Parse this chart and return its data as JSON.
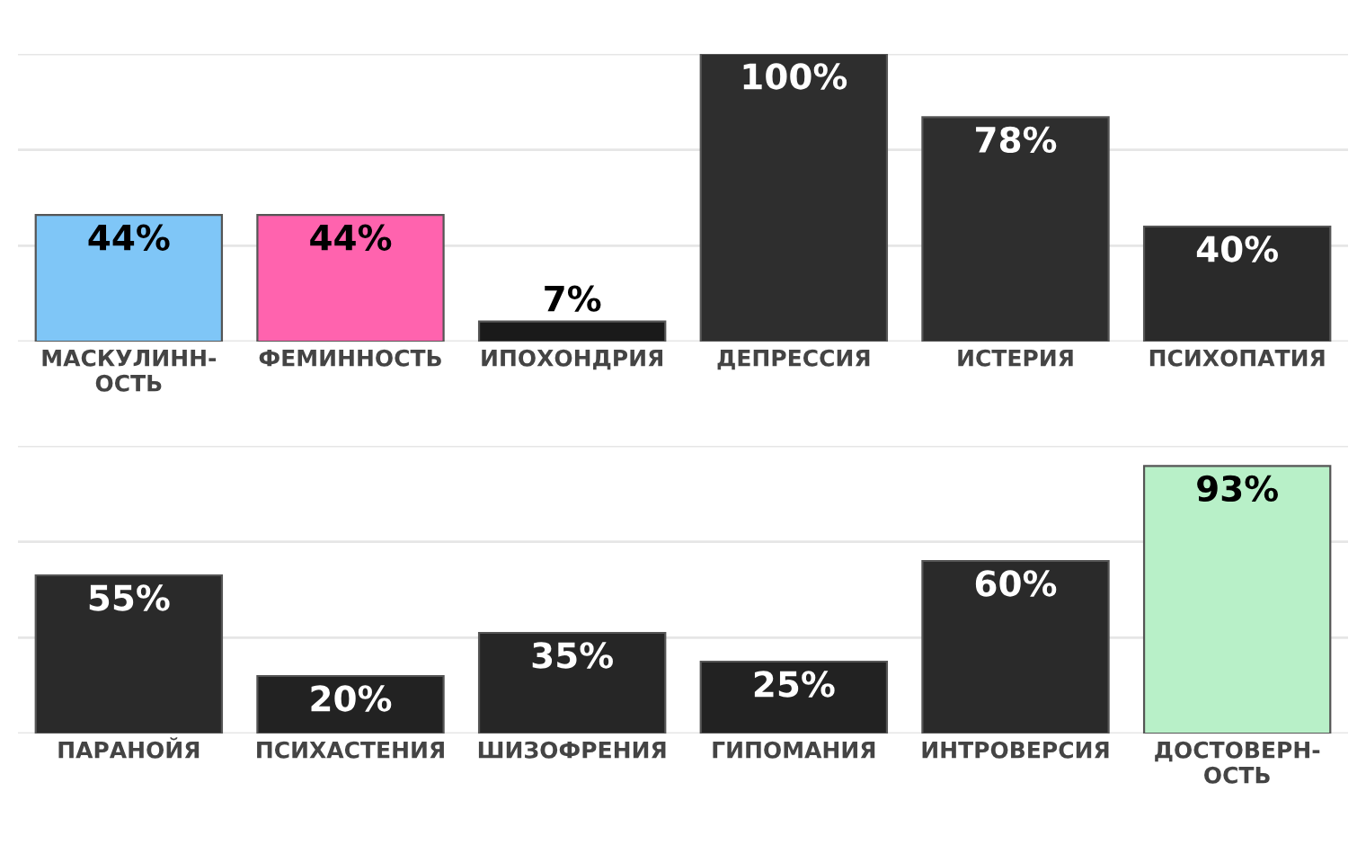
{
  "chart_data": [
    {
      "type": "bar",
      "categories": [
        "МАСКУЛИНН-\nОСТЬ",
        "ФЕМИННОСТЬ",
        "ИПОХОНДРИЯ",
        "ДЕПРЕССИЯ",
        "ИСТЕРИЯ",
        "ПСИХОПАТИЯ"
      ],
      "values": [
        44,
        44,
        7,
        100,
        78,
        40
      ],
      "colors": [
        "#7fc6f7",
        "#ff63ae",
        "#1a1a1a",
        "#2e2e2e",
        "#2e2e2e",
        "#2a2a2a"
      ],
      "value_labels": [
        "44%",
        "44%",
        "7%",
        "100%",
        "78%",
        "40%"
      ],
      "ylim": [
        0,
        100
      ],
      "yticks": [
        {
          "value": 0,
          "label": null
        },
        {
          "value": 33.3,
          "label": null
        },
        {
          "value": 66.7,
          "label": null
        },
        {
          "value": 100,
          "label": null
        }
      ],
      "grid": "y",
      "tick_labels": "x"
    },
    {
      "type": "bar",
      "categories": [
        "ПАРАНОЙЯ",
        "ПСИХАСТЕНИЯ",
        "ШИЗОФРЕНИЯ",
        "ГИПОМАНИЯ",
        "ИНТРОВЕРСИЯ",
        "ДОСТОВЕРН-\nОСТЬ"
      ],
      "values": [
        55,
        20,
        35,
        25,
        60,
        93
      ],
      "colors": [
        "#2a2a2a",
        "#222222",
        "#262626",
        "#222222",
        "#2a2a2a",
        "#b8f0c8"
      ],
      "value_labels": [
        "55%",
        "20%",
        "35%",
        "25%",
        "60%",
        "93%"
      ],
      "ylim": [
        0,
        100
      ],
      "yticks": [
        {
          "value": 0,
          "label": null
        },
        {
          "value": 33.3,
          "label": null
        },
        {
          "value": 66.7,
          "label": null
        },
        {
          "value": 100,
          "label": null
        }
      ],
      "grid": "y",
      "tick_labels": "x"
    }
  ]
}
